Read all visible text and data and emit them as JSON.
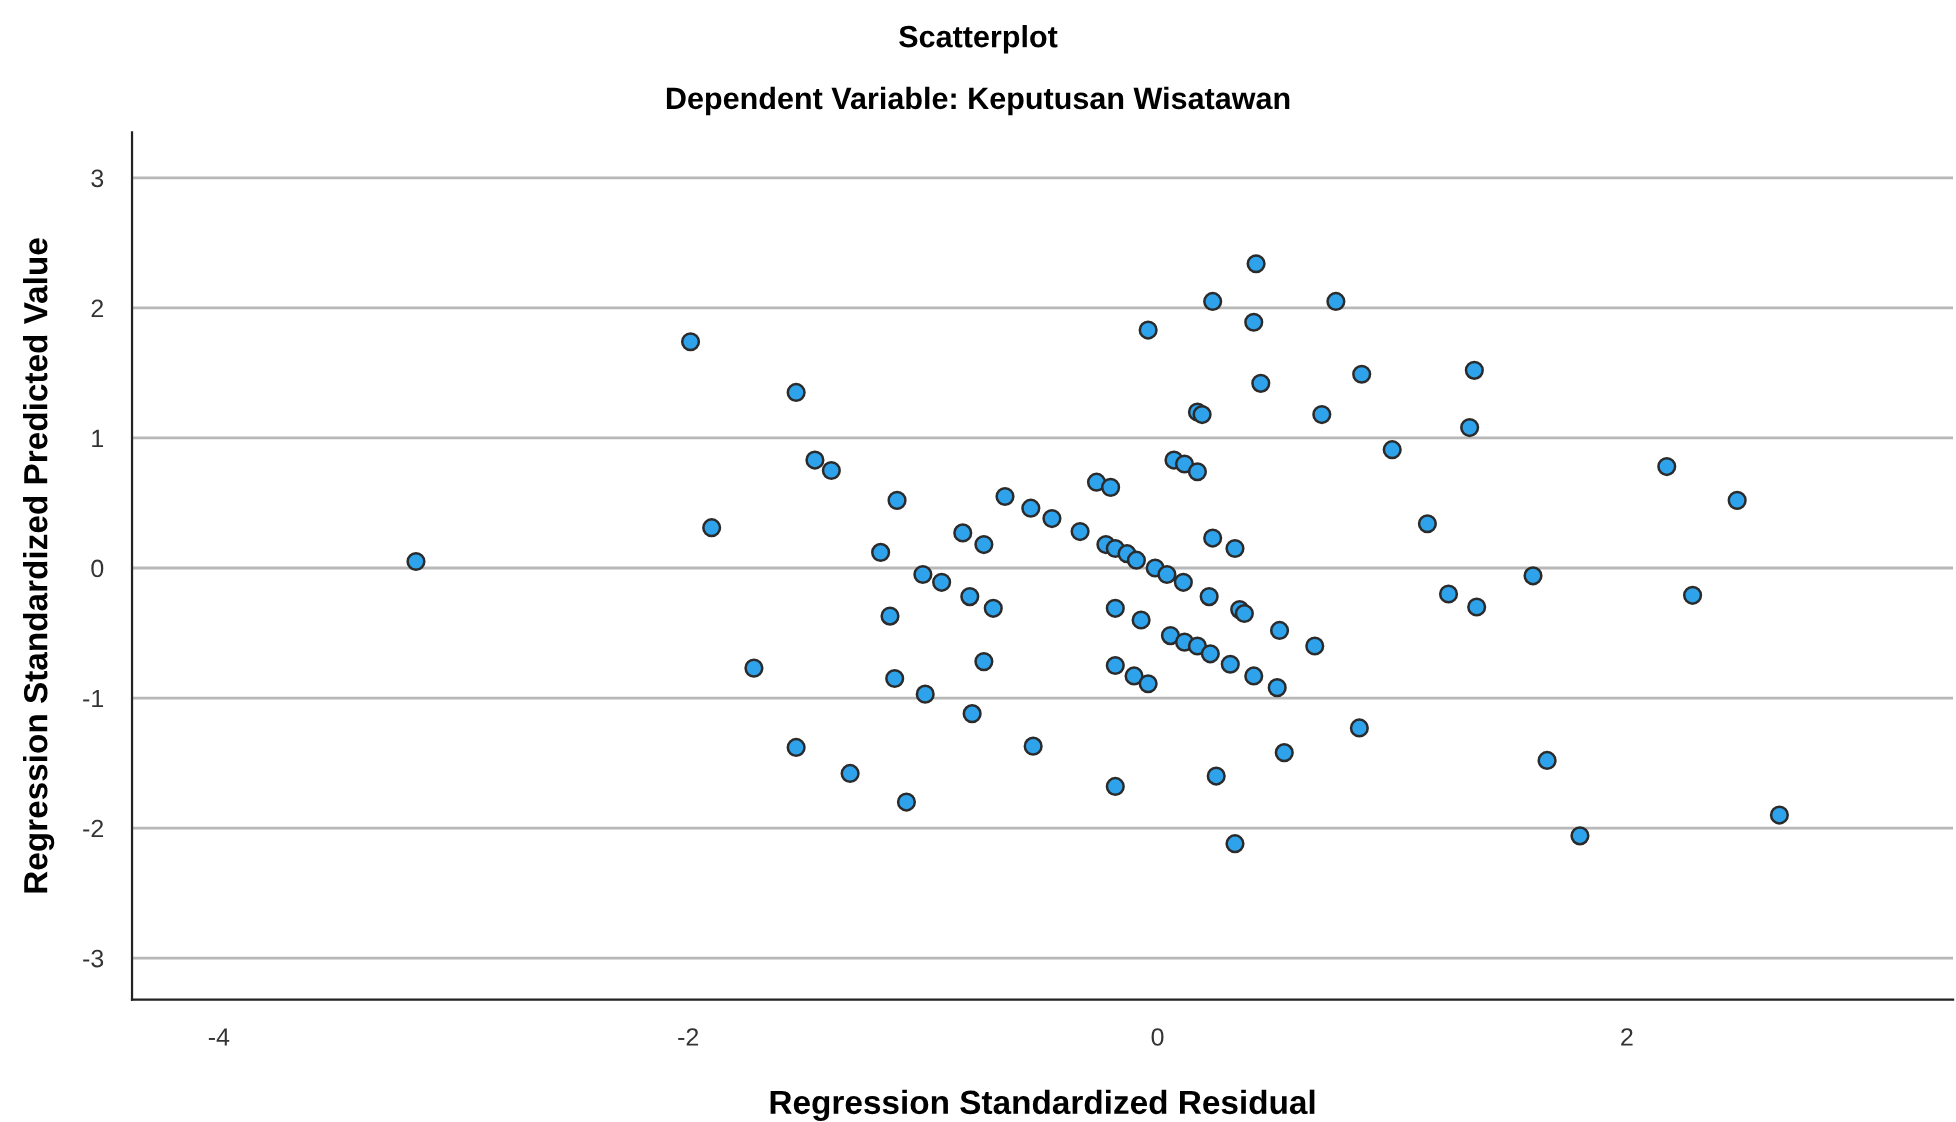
{
  "chart_data": {
    "type": "scatter",
    "title": "Scatterplot",
    "subtitle": "Dependent Variable: Keputusan Wisatawan",
    "xlabel": "Regression Standardized Residual",
    "ylabel": "Regression Standardized Predicted Value",
    "xlim": [
      -4.37,
      3.39
    ],
    "ylim": [
      -3.32,
      3.35
    ],
    "xticks": [
      -4,
      -2,
      0,
      2
    ],
    "yticks": [
      -3,
      -2,
      -1,
      0,
      1,
      2,
      3
    ],
    "grid": "y",
    "marker": "circle",
    "series": [
      {
        "color": "#2ea3ec",
        "x": [
          -1.99,
          -1.54,
          -1.46,
          -1.39,
          -1.11,
          -1.9,
          -3.16,
          -1.18,
          -1.0,
          -0.92,
          -1.14,
          -1.72,
          -1.12,
          -0.99,
          -1.54,
          -1.31,
          -1.07,
          0.42,
          0.235,
          0.76,
          0.41,
          -0.04,
          0.44,
          0.87,
          0.17,
          0.19,
          0.7,
          1.0,
          0.07,
          0.115,
          0.17,
          -0.26,
          -0.2,
          -0.65,
          -0.54,
          -0.45,
          -0.33,
          -0.83,
          -0.74,
          0.235,
          0.33,
          -0.22,
          -0.18,
          -0.13,
          -0.09,
          -0.01,
          0.04,
          0.11,
          -0.8,
          -0.7,
          -0.18,
          0.22,
          -0.07,
          0.35,
          0.37,
          0.52,
          0.67,
          0.055,
          0.115,
          0.17,
          0.225,
          0.31,
          0.41,
          0.51,
          -0.74,
          -0.18,
          -0.1,
          -0.04,
          -0.79,
          0.86,
          -0.53,
          0.54,
          0.25,
          -0.18,
          0.33,
          1.35,
          1.33,
          2.17,
          2.47,
          1.15,
          1.6,
          1.24,
          1.36,
          2.28,
          1.66,
          1.8,
          2.65
        ],
        "values": [
          1.74,
          1.35,
          0.83,
          0.75,
          0.52,
          0.31,
          0.05,
          0.12,
          -0.05,
          -0.11,
          -0.37,
          -0.77,
          -0.85,
          -0.97,
          -1.38,
          -1.58,
          -1.8,
          2.34,
          2.05,
          2.05,
          1.89,
          1.83,
          1.42,
          1.49,
          1.2,
          1.18,
          1.18,
          0.91,
          0.83,
          0.8,
          0.74,
          0.66,
          0.62,
          0.55,
          0.46,
          0.38,
          0.28,
          0.27,
          0.18,
          0.23,
          0.15,
          0.18,
          0.15,
          0.11,
          0.06,
          0.0,
          -0.05,
          -0.11,
          -0.22,
          -0.31,
          -0.31,
          -0.22,
          -0.4,
          -0.32,
          -0.35,
          -0.48,
          -0.6,
          -0.52,
          -0.57,
          -0.6,
          -0.66,
          -0.74,
          -0.83,
          -0.92,
          -0.72,
          -0.75,
          -0.83,
          -0.89,
          -1.12,
          -1.23,
          -1.37,
          -1.42,
          -1.6,
          -1.68,
          -2.12,
          1.52,
          1.08,
          0.78,
          0.52,
          0.34,
          -0.06,
          -0.2,
          -0.3,
          -0.21,
          -1.48,
          -2.06,
          -1.9
        ]
      }
    ]
  }
}
